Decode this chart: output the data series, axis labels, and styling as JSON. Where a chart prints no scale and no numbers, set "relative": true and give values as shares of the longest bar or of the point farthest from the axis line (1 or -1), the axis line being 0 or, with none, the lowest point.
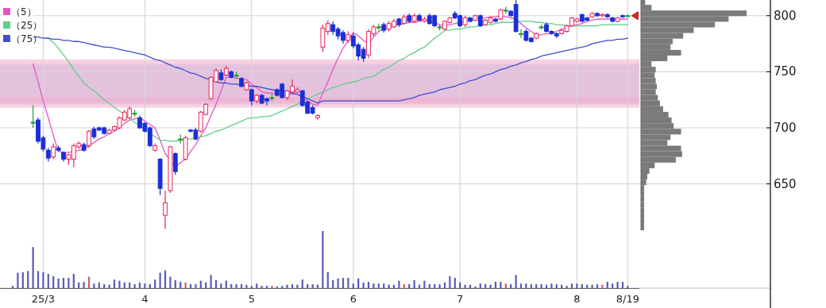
{
  "chart_data": [
    {
      "type": "candlestick",
      "categories": [
        null,
        null,
        null,
        null,
        null,
        null,
        "25/3",
        null,
        null,
        null,
        null,
        null,
        null,
        null,
        null,
        null,
        null,
        null,
        null,
        null,
        null,
        null,
        null,
        null,
        null,
        null,
        "4",
        null,
        null,
        null,
        null,
        null,
        null,
        null,
        null,
        null,
        null,
        null,
        null,
        null,
        null,
        null,
        null,
        null,
        null,
        null,
        null,
        "5",
        null,
        null,
        null,
        null,
        null,
        null,
        null,
        null,
        null,
        null,
        null,
        null,
        null,
        null,
        null,
        null,
        null,
        null,
        null,
        "6",
        null,
        null,
        null,
        null,
        null,
        null,
        null,
        null,
        null,
        null,
        null,
        null,
        null,
        null,
        null,
        null,
        null,
        null,
        null,
        null,
        "7",
        null,
        null,
        null,
        null,
        null,
        null,
        null,
        null,
        null,
        null,
        null,
        null,
        null,
        null,
        null,
        null,
        null,
        null,
        null,
        null,
        null,
        null,
        "8",
        null,
        null,
        null,
        null,
        null,
        null,
        null,
        null,
        null,
        "8/19"
      ],
      "ohlc": [
        null,
        null,
        null,
        null,
        [
          705,
          720,
          700,
          705
        ],
        [
          707,
          709,
          686,
          688
        ],
        [
          691,
          693,
          679,
          681
        ],
        [
          680,
          682,
          670,
          673
        ],
        [
          674,
          686,
          672,
          683
        ],
        [
          682,
          684,
          679,
          680
        ],
        [
          678,
          679,
          670,
          672
        ],
        [
          672,
          677,
          667,
          676
        ],
        [
          672,
          686,
          665,
          684
        ],
        [
          683,
          688,
          681,
          686
        ],
        [
          685,
          687,
          679,
          680
        ],
        [
          684,
          698,
          682,
          697
        ],
        [
          699,
          701,
          690,
          692
        ],
        [
          700,
          701,
          697,
          698
        ],
        [
          700,
          701,
          694,
          695
        ],
        [
          695,
          699,
          694,
          698
        ],
        [
          698,
          702,
          697,
          701
        ],
        [
          700,
          710,
          699,
          709
        ],
        [
          707,
          716,
          706,
          714
        ],
        [
          709,
          719,
          708,
          717
        ],
        [
          713,
          716,
          710,
          713
        ],
        [
          709,
          711,
          699,
          700
        ],
        [
          704,
          705,
          696,
          697
        ],
        [
          700,
          701,
          683,
          684
        ],
        [
          680,
          686,
          679,
          684
        ],
        [
          672,
          673,
          640,
          646
        ],
        [
          622,
          644,
          610,
          633
        ],
        [
          644,
          684,
          642,
          683
        ],
        [
          677,
          678,
          658,
          661
        ],
        [
          690,
          694,
          686,
          690
        ],
        [
          672,
          693,
          671,
          691
        ],
        [
          698,
          699,
          696,
          697
        ],
        [
          698,
          700,
          689,
          690
        ],
        [
          697,
          715,
          696,
          714
        ],
        [
          712,
          722,
          711,
          721
        ],
        [
          726,
          746,
          725,
          745
        ],
        [
          741,
          753,
          740,
          751
        ],
        [
          749,
          752,
          742,
          743
        ],
        [
          747,
          755,
          746,
          753
        ],
        [
          750,
          751,
          744,
          745
        ],
        [
          747,
          750,
          744,
          747
        ],
        [
          744,
          745,
          736,
          737
        ],
        [
          734,
          741,
          733,
          740
        ],
        [
          734,
          735,
          720,
          724
        ],
        [
          724,
          730,
          722,
          729
        ],
        [
          729,
          730,
          721,
          722
        ],
        [
          726,
          727,
          720,
          724
        ],
        [
          727,
          730,
          724,
          727
        ],
        [
          734,
          735,
          728,
          729
        ],
        [
          739,
          740,
          726,
          727
        ],
        [
          727,
          734,
          725,
          733
        ],
        [
          732,
          743,
          731,
          737
        ],
        [
          732,
          736,
          731,
          734
        ],
        [
          733,
          734,
          719,
          720
        ],
        [
          723,
          724,
          712,
          713
        ],
        [
          718,
          720,
          712,
          713
        ],
        [
          709,
          712,
          707,
          711
        ],
        [
          772,
          792,
          768,
          789
        ],
        [
          786,
          796,
          783,
          793
        ],
        [
          792,
          795,
          783,
          786
        ],
        [
          788,
          790,
          779,
          782
        ],
        [
          785,
          787,
          775,
          778
        ],
        [
          778,
          786,
          776,
          783
        ],
        [
          782,
          784,
          771,
          773
        ],
        [
          774,
          776,
          760,
          764
        ],
        [
          770,
          772,
          759,
          762
        ],
        [
          765,
          788,
          762,
          786
        ],
        [
          784,
          792,
          782,
          790
        ],
        [
          790,
          793,
          787,
          790
        ],
        [
          792,
          794,
          785,
          787
        ],
        [
          788,
          795,
          786,
          793
        ],
        [
          790,
          797,
          789,
          795
        ],
        [
          797,
          798,
          790,
          792
        ],
        [
          793,
          801,
          792,
          799
        ],
        [
          800,
          802,
          794,
          795
        ],
        [
          795,
          802,
          794,
          800
        ],
        [
          800,
          802,
          795,
          796
        ],
        [
          795,
          799,
          794,
          797
        ],
        [
          800,
          802,
          792,
          793
        ],
        [
          800,
          801,
          790,
          791
        ],
        [
          790,
          792,
          787,
          790
        ],
        [
          788,
          796,
          787,
          795
        ],
        [
          794,
          799,
          793,
          798
        ],
        [
          802,
          804,
          797,
          798
        ],
        [
          800,
          801,
          790,
          791
        ],
        [
          792,
          800,
          790,
          798
        ],
        [
          798,
          799,
          794,
          795
        ],
        [
          796,
          801,
          795,
          800
        ],
        [
          800,
          801,
          790,
          791
        ],
        [
          792,
          797,
          791,
          796
        ],
        [
          794,
          799,
          793,
          798
        ],
        [
          797,
          798,
          794,
          795
        ],
        [
          797,
          806,
          796,
          805
        ],
        [
          805,
          808,
          802,
          805
        ],
        [
          804,
          805,
          799,
          800
        ],
        [
          810,
          814,
          785,
          786
        ],
        [
          784,
          788,
          780,
          784
        ],
        [
          786,
          788,
          777,
          778
        ],
        [
          780,
          781,
          776,
          777
        ],
        [
          780,
          785,
          779,
          784
        ],
        [
          790,
          792,
          788,
          790
        ],
        [
          792,
          794,
          785,
          786
        ],
        [
          786,
          787,
          783,
          784
        ],
        [
          784,
          785,
          780,
          782
        ],
        [
          784,
          788,
          783,
          787
        ],
        [
          786,
          792,
          785,
          791
        ],
        [
          791,
          799,
          790,
          798
        ],
        [
          795,
          798,
          794,
          797
        ],
        [
          801,
          802,
          794,
          795
        ],
        [
          798,
          799,
          795,
          796
        ],
        [
          799,
          803,
          798,
          802
        ],
        [
          802,
          803,
          799,
          800
        ],
        [
          800,
          802,
          799,
          801
        ],
        [
          801,
          802,
          798,
          799
        ],
        [
          798,
          799,
          794,
          795
        ],
        [
          795,
          799,
          794,
          798
        ],
        [
          800,
          801,
          798,
          799
        ],
        [
          800,
          801,
          799,
          800
        ]
      ],
      "series": [
        {
          "name": "（5）",
          "type": "line",
          "color": "#e455c4",
          "values": [
            null,
            null,
            null,
            null,
            757,
            741,
            724,
            709,
            693,
            679,
            678,
            678,
            679,
            680,
            681,
            684,
            687,
            690,
            692,
            695,
            697,
            700,
            704,
            707,
            708,
            709,
            706,
            703,
            700,
            689,
            677,
            671,
            665,
            669,
            672,
            679,
            685,
            693,
            700,
            711,
            721,
            733,
            745,
            745,
            744,
            744,
            743,
            739,
            736,
            732,
            731,
            731,
            730,
            730,
            730,
            730,
            730,
            727,
            724,
            721,
            720,
            731,
            741,
            752,
            762,
            771,
            778,
            785,
            782,
            778,
            775,
            781,
            786,
            788,
            789,
            791,
            792,
            793,
            794,
            794,
            795,
            796,
            795,
            794,
            792,
            791,
            792,
            793,
            794,
            795,
            796,
            797,
            798,
            798,
            799,
            799,
            800,
            799,
            798,
            797,
            793,
            789,
            786,
            783,
            783,
            784,
            784,
            786,
            788,
            790,
            791,
            792,
            793,
            795,
            796,
            797,
            797,
            797,
            797,
            797,
            797,
            797
          ]
        },
        {
          "name": "（25）",
          "type": "line",
          "color": "#5fcf8a",
          "values": [
            null,
            null,
            null,
            null,
            null,
            null,
            null,
            780,
            776,
            771,
            765,
            759,
            752,
            746,
            740,
            736,
            733,
            729,
            725,
            722,
            718,
            715,
            712,
            708,
            705,
            702,
            699,
            695,
            692,
            689,
            689,
            688,
            688,
            689,
            690,
            690,
            691,
            692,
            693,
            695,
            697,
            698,
            700,
            702,
            704,
            706,
            708,
            709,
            709,
            710,
            710,
            711,
            713,
            715,
            717,
            719,
            721,
            724,
            726,
            728,
            730,
            732,
            734,
            736,
            737,
            739,
            740,
            741,
            742,
            744,
            745,
            746,
            749,
            752,
            754,
            757,
            760,
            762,
            765,
            767,
            770,
            772,
            776,
            780,
            783,
            787,
            787,
            788,
            788,
            789,
            790,
            790,
            791,
            792,
            792,
            793,
            794,
            794,
            794,
            795,
            795,
            795,
            795,
            794,
            794,
            793,
            793,
            792,
            792,
            791,
            791,
            791,
            791,
            791,
            791,
            791,
            792,
            792,
            792,
            792,
            792,
            792
          ]
        },
        {
          "name": "（75）",
          "type": "line",
          "color": "#3f4fcf",
          "values": [
            null,
            null,
            null,
            null,
            781,
            781,
            780,
            780,
            779,
            779,
            778,
            778,
            777,
            777,
            776,
            775,
            774,
            773,
            772,
            772,
            771,
            770,
            769,
            768,
            767,
            766,
            765,
            763,
            761,
            760,
            758,
            756,
            754,
            753,
            751,
            749,
            748,
            746,
            744,
            743,
            741,
            740,
            740,
            739,
            739,
            738,
            738,
            737,
            737,
            736,
            735,
            734,
            733,
            733,
            732,
            731,
            730,
            728,
            726,
            724,
            722,
            724,
            724,
            724,
            724,
            724,
            724,
            724,
            724,
            724,
            724,
            724,
            724,
            724,
            724,
            724,
            724,
            725,
            726,
            727,
            729,
            730,
            731,
            732,
            734,
            735,
            736,
            737,
            739,
            740,
            742,
            743,
            745,
            747,
            748,
            750,
            752,
            753,
            755,
            756,
            758,
            759,
            761,
            762,
            764,
            765,
            766,
            767,
            768,
            769,
            770,
            771,
            772,
            773,
            775,
            776,
            777,
            778,
            778,
            779,
            779,
            780
          ]
        }
      ],
      "bands": [
        {
          "axis": "y",
          "from": 721,
          "to": 757,
          "color": "#a9c8f4"
        },
        {
          "axis": "y",
          "from": 718,
          "to": 761,
          "color": "#f4a9c9"
        },
        {
          "axis": "y",
          "from": 723,
          "to": 727,
          "color": "#f4a9c9"
        }
      ],
      "ylim": [
        557,
        814
      ],
      "yticks": [
        650,
        700,
        750,
        800
      ],
      "grid": true,
      "legend": "top left"
    },
    {
      "type": "bar",
      "relative": true,
      "categories": [
        null,
        null,
        null,
        null,
        null,
        null,
        null,
        null,
        null,
        null,
        null,
        null,
        null,
        null,
        null,
        null,
        null,
        null,
        null,
        null,
        null,
        null,
        null,
        null,
        null,
        null,
        null,
        null,
        null,
        null,
        null,
        null,
        null,
        null,
        null,
        null,
        null,
        null,
        null,
        null,
        null,
        null,
        null,
        null,
        null,
        null,
        null,
        null,
        null,
        null,
        null,
        null,
        null,
        null,
        null,
        null,
        null,
        null,
        null,
        null,
        null,
        null,
        null,
        null,
        null,
        null,
        null,
        null,
        null,
        null,
        null,
        null,
        null,
        null,
        null,
        null,
        null,
        null,
        null,
        null,
        null,
        null,
        null,
        null,
        null,
        null,
        null,
        null,
        null,
        null,
        null,
        null,
        null,
        null,
        null,
        null,
        null,
        null,
        null,
        null,
        null,
        null,
        null,
        null,
        null,
        null,
        null,
        null,
        null,
        null,
        null,
        null,
        null,
        null,
        null,
        null,
        null,
        null,
        null,
        null,
        null,
        null
      ],
      "values": [
        0.04,
        0.27,
        0.28,
        0.3,
        0.72,
        0.3,
        0.28,
        0.25,
        0.21,
        0.17,
        0.18,
        0.18,
        0.25,
        0.1,
        0.11,
        0.2,
        0.08,
        0.1,
        0.07,
        0.06,
        0.15,
        0.13,
        0.1,
        0.1,
        0.07,
        0.1,
        0.08,
        0.07,
        0.15,
        0.27,
        0.31,
        0.2,
        0.14,
        0.11,
        0.1,
        0.07,
        0.07,
        0.13,
        0.1,
        0.23,
        0.14,
        0.08,
        0.13,
        0.07,
        0.07,
        0.07,
        0.06,
        0.04,
        0.08,
        0.04,
        0.04,
        0.04,
        0.03,
        0.04,
        0.06,
        0.07,
        0.06,
        0.15,
        0.07,
        0.07,
        0.06,
        1,
        0.28,
        0.14,
        0.17,
        0.18,
        0.18,
        0.08,
        0.17,
        0.1,
        0.11,
        0.08,
        0.08,
        0.08,
        0.06,
        0.06,
        0.13,
        0.07,
        0.07,
        0.14,
        0.06,
        0.13,
        0.07,
        0.07,
        0.07,
        0.1,
        0.21,
        0.18,
        0.1,
        0.06,
        0.06,
        0.03,
        0.08,
        0.07,
        0.06,
        0.11,
        0.11,
        0.08,
        0.07,
        0.23,
        0.08,
        0.08,
        0.07,
        0.07,
        0.07,
        0.06,
        0.08,
        0.07,
        0.06,
        0.04,
        0.08,
        0.08,
        0.07,
        0.06,
        0.06,
        0.07,
        0.06,
        0.11,
        0.08,
        0.11,
        0.11,
        0.04
      ],
      "colors": [
        "#5a5ab8",
        "#5a5ab8",
        "#5a5ab8",
        "#5a5ab8",
        "#5a5ab8",
        "#5a5ab8",
        "#5a5ab8",
        "#5a5ab8",
        "#5a5ab8",
        "#5a5ab8",
        "#5a5ab8",
        "#5a5ab8",
        "#5a5ab8",
        "#5a5ab8",
        "#5a5ab8",
        "#d0605a",
        "#5a5ab8",
        "#5a5ab8",
        "#5a5ab8",
        "#5a5ab8",
        "#5a5ab8",
        "#5a5ab8",
        "#5a5ab8",
        "#5a5ab8",
        "#5a5ab8",
        "#5a5ab8",
        "#5a5ab8",
        "#5a5ab8",
        "#5a5ab8",
        "#5a5ab8",
        "#5a5ab8",
        "#5a5ab8",
        "#5a5ab8",
        "#5a5ab8",
        "#d0605a",
        "#5a5ab8",
        "#5a5ab8",
        "#5a5ab8",
        "#5a5ab8",
        "#5a5ab8",
        "#5a5ab8",
        "#5a5ab8",
        "#5a5ab8",
        "#5a5ab8",
        "#5a5ab8",
        "#5a5ab8",
        "#5a5ab8",
        "#5a5ab8",
        "#5a5ab8",
        "#5a5ab8",
        "#5a5ab8",
        "#d0605a",
        "#5a5ab8",
        "#5a5ab8",
        "#5a5ab8",
        "#5a5ab8",
        "#5a5ab8",
        "#5a5ab8",
        "#5a5ab8",
        "#5a5ab8",
        "#5a5ab8",
        "#5a5ab8",
        "#5a5ab8",
        "#5a5ab8",
        "#5a5ab8",
        "#5a5ab8",
        "#5a5ab8",
        "#5a5ab8",
        "#5a5ab8",
        "#5a5ab8",
        "#5a5ab8",
        "#5a5ab8",
        "#5a5ab8",
        "#5a5ab8",
        "#5a5ab8",
        "#5a5ab8",
        "#5a5ab8",
        "#d0605a",
        "#5a5ab8",
        "#5a5ab8",
        "#5a5ab8",
        "#5a5ab8",
        "#5a5ab8",
        "#5a5ab8",
        "#5a5ab8",
        "#5a5ab8",
        "#5a5ab8",
        "#5a5ab8",
        "#5a5ab8",
        "#5a5ab8",
        "#5a5ab8",
        "#5a5ab8",
        "#5a5ab8",
        "#5a5ab8",
        "#5a5ab8",
        "#5a5ab8",
        "#5a5ab8",
        "#d0605a",
        "#5a5ab8",
        "#5a5ab8",
        "#5a5ab8",
        "#5a5ab8",
        "#5a5ab8",
        "#5a5ab8",
        "#5a5ab8",
        "#5a5ab8",
        "#5a5ab8",
        "#5a5ab8",
        "#5a5ab8",
        "#5a5ab8",
        "#5a5ab8",
        "#5a5ab8",
        "#5a5ab8",
        "#5a5ab8",
        "#5a5ab8",
        "#5a5ab8",
        "#d0605a",
        "#5a5ab8",
        "#5a5ab8",
        "#5a5ab8",
        "#5a5ab8",
        "#5a5ab8"
      ],
      "grid": false
    },
    {
      "type": "bar",
      "orientation": "horizontal",
      "relative": true,
      "categories": [
        null,
        null,
        null,
        null,
        null,
        null,
        null,
        null,
        null,
        null,
        null,
        null,
        null,
        null,
        null,
        null,
        null,
        null,
        null,
        null,
        null,
        null,
        null,
        null,
        null,
        null,
        null,
        null,
        null,
        null,
        null,
        null,
        null,
        null,
        null,
        null,
        null,
        null,
        null,
        null,
        null
      ],
      "values": [
        0.04,
        0.1,
        1,
        0.83,
        0.7,
        0.5,
        0.4,
        0.3,
        0.28,
        0.38,
        0.25,
        0.1,
        0.14,
        0.13,
        0.14,
        0.15,
        0.14,
        0.16,
        0.18,
        0.21,
        0.26,
        0.29,
        0.31,
        0.38,
        0.28,
        0.25,
        0.38,
        0.39,
        0.33,
        0.13,
        0.08,
        0.06,
        0.05,
        0.03,
        0.03,
        0.03,
        0.03,
        0.03,
        0.03,
        0.03,
        0.03
      ],
      "color": "#7a7a7a"
    }
  ]
}
